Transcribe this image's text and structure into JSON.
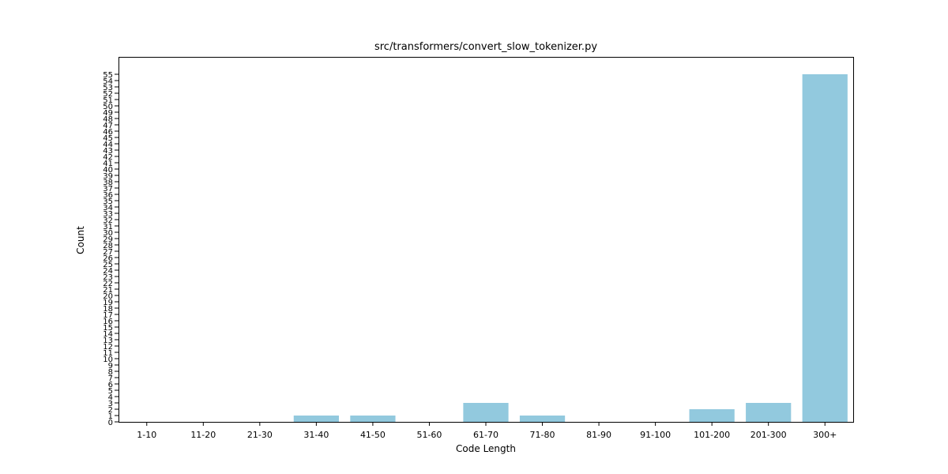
{
  "chart_data": {
    "type": "bar",
    "title": "src/transformers/convert_slow_tokenizer.py",
    "xlabel": "Code Length",
    "ylabel": "Count",
    "categories": [
      "1-10",
      "11-20",
      "21-30",
      "31-40",
      "41-50",
      "51-60",
      "61-70",
      "71-80",
      "81-90",
      "91-100",
      "101-200",
      "201-300",
      "300+"
    ],
    "values": [
      0,
      0,
      0,
      1,
      1,
      0,
      3,
      1,
      0,
      0,
      2,
      3,
      55
    ],
    "ylim": [
      0,
      55
    ],
    "bar_color": "#92c9de",
    "grid": false,
    "legend": "none"
  }
}
